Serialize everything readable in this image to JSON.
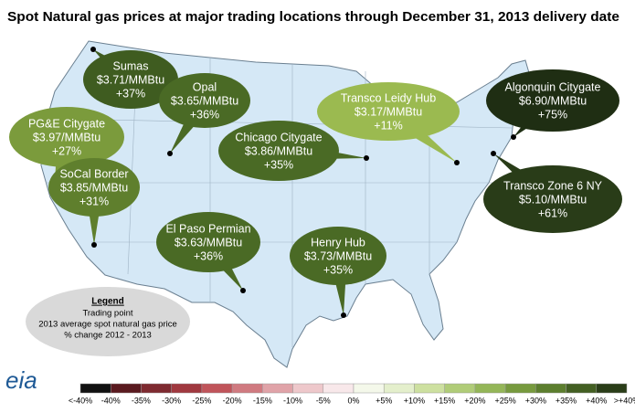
{
  "title": "Spot Natural gas prices at major trading locations through December 31, 2013 delivery date",
  "hubs": [
    {
      "name": "Sumas",
      "price": "$3.71/MMBtu",
      "change": "+37%",
      "color": "#3f5c20"
    },
    {
      "name": "Opal",
      "price": "$3.65/MMBtu",
      "change": "+36%",
      "color": "#4a6a25"
    },
    {
      "name": "PG&E Citygate",
      "price": "$3.97/MMBtu",
      "change": "+27%",
      "color": "#7b9b3c"
    },
    {
      "name": "SoCal Border",
      "price": "$3.85/MMBtu",
      "change": "+31%",
      "color": "#5f7f2d"
    },
    {
      "name": "Chicago Citygate",
      "price": "$3.86/MMBtu",
      "change": "+35%",
      "color": "#4a6a25"
    },
    {
      "name": "Transco Leidy Hub",
      "price": "$3.17/MMBtu",
      "change": "+11%",
      "color": "#9bba50"
    },
    {
      "name": "Algonquin Citygate",
      "price": "$6.90/MMBtu",
      "change": "+75%",
      "color": "#1f2e13"
    },
    {
      "name": "Transco Zone 6 NY",
      "price": "$5.10/MMBtu",
      "change": "+61%",
      "color": "#293c18"
    },
    {
      "name": "El Paso Permian",
      "price": "$3.63/MMBtu",
      "change": "+36%",
      "color": "#4a6a25"
    },
    {
      "name": "Henry Hub",
      "price": "$3.73/MMBtu",
      "change": "+35%",
      "color": "#4a6a25"
    }
  ],
  "legend": {
    "title": "Legend",
    "lines": [
      "Trading point",
      "2013 average spot natural gas price",
      "% change 2012 - 2013"
    ]
  },
  "logo": "eia",
  "scale": {
    "labels": [
      "<-40%",
      "-40%",
      "-35%",
      "-30%",
      "-25%",
      "-20%",
      "-15%",
      "-10%",
      "-5%",
      "0%",
      "+5%",
      "+10%",
      "+15%",
      "+20%",
      "+25%",
      "+30%",
      "+35%",
      "+40%",
      ">+40%"
    ],
    "colors": [
      "#111111",
      "#5a1a1f",
      "#7e2a30",
      "#a0383f",
      "#c0545a",
      "#d07a80",
      "#e0a3a8",
      "#eec8cb",
      "#f8e8ea",
      "#f4f8ea",
      "#e4efcc",
      "#cde0a0",
      "#b0cc78",
      "#94b658",
      "#779a3e",
      "#5c7e2e",
      "#435f22",
      "#2a3d18"
    ]
  }
}
